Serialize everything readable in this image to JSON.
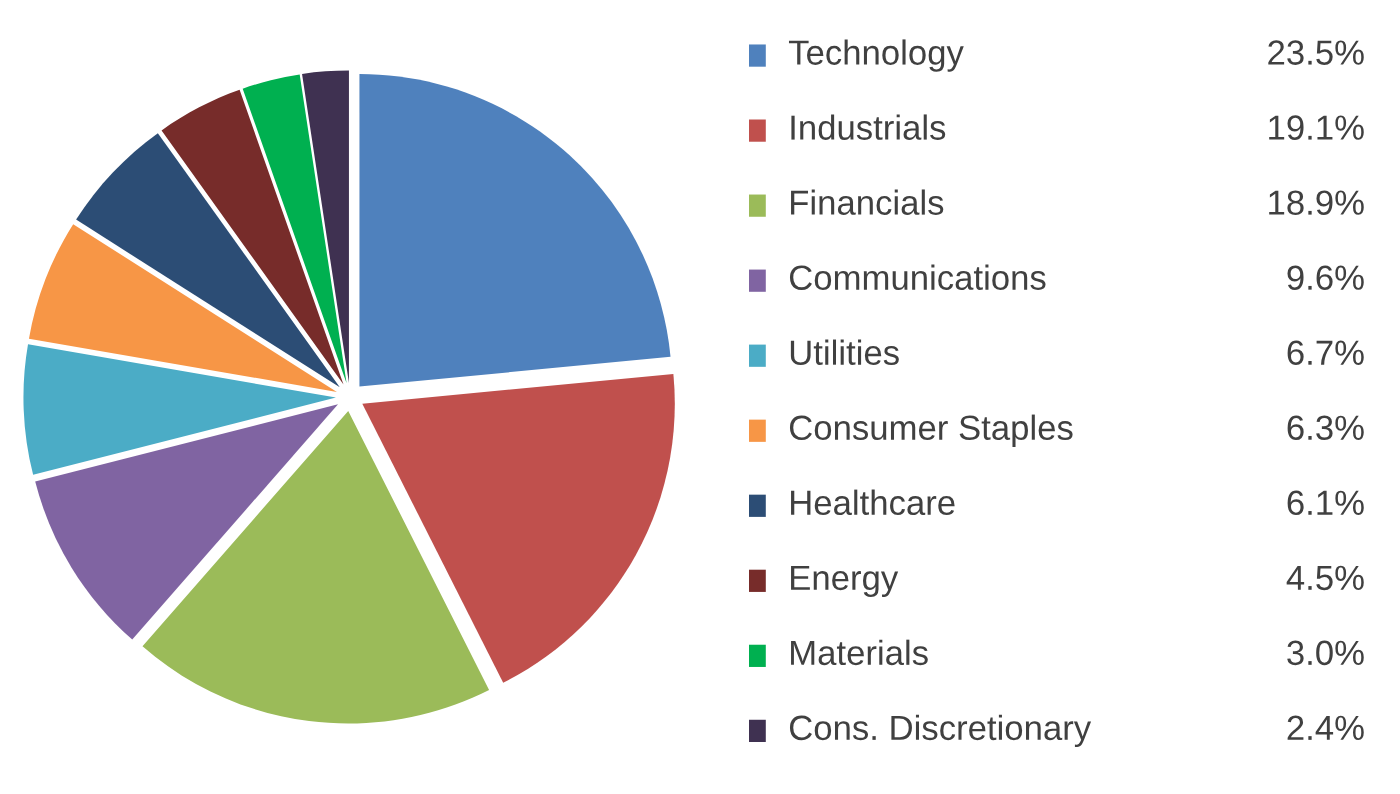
{
  "chart_data": {
    "type": "pie",
    "categories": [
      "Technology",
      "Industrials",
      "Financials",
      "Communications",
      "Utilities",
      "Consumer Staples",
      "Healthcare",
      "Energy",
      "Materials",
      "Cons. Discretionary"
    ],
    "values": [
      23.5,
      19.1,
      18.9,
      9.6,
      6.7,
      6.3,
      6.1,
      4.5,
      3.0,
      2.4
    ],
    "value_labels": [
      "23.5%",
      "19.1%",
      "18.9%",
      "9.6%",
      "6.7%",
      "6.3%",
      "6.1%",
      "4.5%",
      "3.0%",
      "2.4%"
    ],
    "colors": [
      "#4f81bd",
      "#c0504d",
      "#9bbb59",
      "#8064a2",
      "#4bacc6",
      "#f79646",
      "#2c4d75",
      "#772c2a",
      "#00b050",
      "#3f3151"
    ],
    "legend": "right"
  }
}
